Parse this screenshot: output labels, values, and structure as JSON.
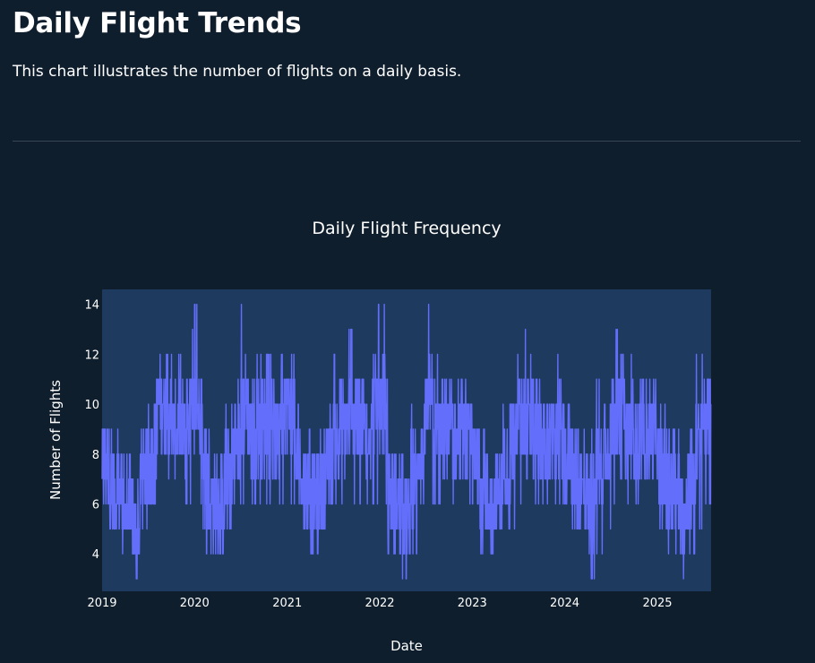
{
  "page": {
    "title": "Daily Flight Trends",
    "subtitle": "This chart illustrates the number of flights on a daily basis."
  },
  "colors": {
    "page_background": "#0f1e2d",
    "plot_background": "#1f3a5f",
    "line": "#636efa",
    "divider": "#3b4654",
    "text": "#ffffff"
  },
  "chart_data": {
    "type": "line",
    "title": "Daily Flight Frequency",
    "xlabel": "Date",
    "ylabel": "Number of Flights",
    "grid": false,
    "legend": "none",
    "xlim": [
      "2019-01-01",
      "2025-08-01"
    ],
    "ylim": [
      2.5,
      14.6
    ],
    "x_ticks": [
      {
        "value": "2019-01-01",
        "label": "2019"
      },
      {
        "value": "2020-01-01",
        "label": "2020"
      },
      {
        "value": "2021-01-01",
        "label": "2021"
      },
      {
        "value": "2022-01-01",
        "label": "2022"
      },
      {
        "value": "2023-01-01",
        "label": "2023"
      },
      {
        "value": "2024-01-01",
        "label": "2024"
      },
      {
        "value": "2025-01-01",
        "label": "2025"
      }
    ],
    "y_ticks": [
      4,
      6,
      8,
      10,
      12,
      14
    ],
    "series": [
      {
        "x_start": "2019-01-01",
        "x_end": "2025-08-01",
        "x_step": "1 month",
        "monthly_max": [
          10,
          9,
          9,
          8,
          7,
          9,
          10,
          13,
          12,
          12,
          12,
          13,
          14,
          9,
          8,
          8,
          10,
          11,
          14,
          12,
          12,
          12,
          11,
          14,
          14,
          10,
          9,
          8,
          9,
          10,
          12,
          12,
          13,
          13,
          12,
          14,
          14,
          9,
          8,
          8,
          10,
          11,
          14,
          12,
          12,
          11,
          11,
          11,
          9,
          9,
          8,
          9,
          10,
          12,
          13,
          12,
          12,
          11,
          11,
          12,
          10,
          9,
          9,
          9,
          11,
          12,
          13,
          12,
          12,
          11,
          11,
          12,
          10,
          9,
          9,
          9,
          10,
          12,
          13
        ],
        "monthly_min": [
          5,
          4,
          4,
          3,
          3,
          5,
          6,
          7,
          7,
          6,
          6,
          6,
          6,
          4,
          4,
          4,
          5,
          6,
          6,
          6,
          6,
          6,
          6,
          6,
          6,
          5,
          4,
          4,
          4,
          5,
          6,
          6,
          6,
          6,
          6,
          6,
          6,
          4,
          4,
          3,
          4,
          5,
          6,
          6,
          6,
          6,
          6,
          6,
          6,
          4,
          4,
          4,
          5,
          5,
          6,
          6,
          6,
          6,
          6,
          6,
          6,
          5,
          4,
          3,
          4,
          5,
          6,
          6,
          6,
          6,
          6,
          6,
          5,
          4,
          4,
          3,
          4,
          5,
          6
        ]
      }
    ]
  }
}
